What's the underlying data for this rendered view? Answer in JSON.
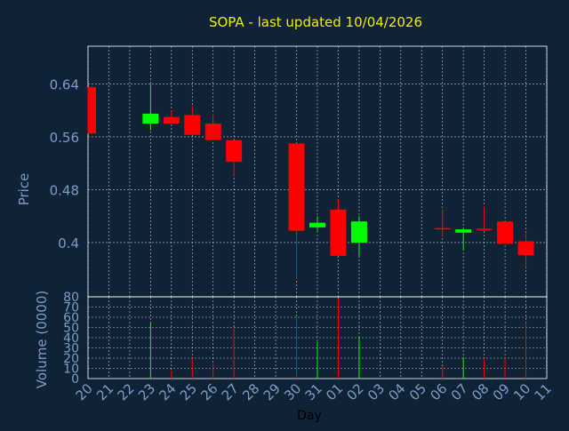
{
  "title": "SOPA - last updated 10/04/2026",
  "colors": {
    "background": "#0f2236",
    "title": "#f0f000",
    "axis_text": "#7c9ec8",
    "grid": "#ffffff",
    "up": "#00ff00",
    "down": "#ff0000"
  },
  "chart_data": [
    {
      "type": "candlestick",
      "title": "SOPA - last updated 10/04/2026",
      "ylabel": "Price",
      "ylim": [
        0.318,
        0.697
      ],
      "yticks": [
        "0.4",
        "0.48",
        "0.56",
        "0.64"
      ],
      "ytick_values": [
        0.4,
        0.48,
        0.56,
        0.64
      ],
      "grid": true,
      "candles": [
        {
          "x": "20",
          "open": 0.635,
          "high": 0.635,
          "low": 0.565,
          "close": 0.565
        },
        {
          "x": "23",
          "open": 0.58,
          "high": 0.64,
          "low": 0.57,
          "close": 0.595
        },
        {
          "x": "24",
          "open": 0.59,
          "high": 0.6,
          "low": 0.58,
          "close": 0.58
        },
        {
          "x": "25",
          "open": 0.593,
          "high": 0.607,
          "low": 0.563,
          "close": 0.563
        },
        {
          "x": "26",
          "open": 0.58,
          "high": 0.595,
          "low": 0.555,
          "close": 0.555
        },
        {
          "x": "27",
          "open": 0.555,
          "high": 0.555,
          "low": 0.5,
          "close": 0.522
        },
        {
          "x": "30",
          "open": 0.55,
          "high": 0.55,
          "low": 0.345,
          "close": 0.418
        },
        {
          "x": "31",
          "open": 0.423,
          "high": 0.44,
          "low": 0.418,
          "close": 0.43
        },
        {
          "x": "01",
          "open": 0.45,
          "high": 0.465,
          "low": 0.38,
          "close": 0.38
        },
        {
          "x": "02",
          "open": 0.4,
          "high": 0.44,
          "low": 0.38,
          "close": 0.432
        },
        {
          "x": "06",
          "open": 0.422,
          "high": 0.45,
          "low": 0.41,
          "close": 0.42
        },
        {
          "x": "07",
          "open": 0.415,
          "high": 0.422,
          "low": 0.388,
          "close": 0.42
        },
        {
          "x": "08",
          "open": 0.421,
          "high": 0.455,
          "low": 0.418,
          "close": 0.42
        },
        {
          "x": "09",
          "open": 0.432,
          "high": 0.432,
          "low": 0.398,
          "close": 0.398
        },
        {
          "x": "10",
          "open": 0.402,
          "high": 0.416,
          "low": 0.362,
          "close": 0.381
        }
      ]
    },
    {
      "type": "bar",
      "ylabel": "Volume (0000)",
      "xlabel": "Day",
      "ylim": [
        0,
        80
      ],
      "yticks": [
        "0",
        "10",
        "20",
        "30",
        "40",
        "50",
        "60",
        "70",
        "80"
      ],
      "ytick_values": [
        0,
        10,
        20,
        30,
        40,
        50,
        60,
        70,
        80
      ],
      "categories": [
        "20",
        "21",
        "22",
        "23",
        "24",
        "25",
        "26",
        "27",
        "28",
        "29",
        "30",
        "31",
        "01",
        "02",
        "03",
        "04",
        "05",
        "06",
        "07",
        "08",
        "09",
        "10",
        "11"
      ],
      "volumes": [
        {
          "x": "23",
          "value": 55,
          "color": "up"
        },
        {
          "x": "24",
          "value": 8,
          "color": "down"
        },
        {
          "x": "25",
          "value": 20,
          "color": "down"
        },
        {
          "x": "26",
          "value": 15,
          "color": "down"
        },
        {
          "x": "27",
          "value": 50,
          "color": "down"
        },
        {
          "x": "30",
          "value": 60,
          "color": "down"
        },
        {
          "x": "31",
          "value": 36,
          "color": "up"
        },
        {
          "x": "01",
          "value": 78,
          "color": "down"
        },
        {
          "x": "02",
          "value": 40,
          "color": "up"
        },
        {
          "x": "06",
          "value": 12,
          "color": "down"
        },
        {
          "x": "07",
          "value": 20,
          "color": "up"
        },
        {
          "x": "08",
          "value": 20,
          "color": "down"
        },
        {
          "x": "09",
          "value": 20,
          "color": "down"
        },
        {
          "x": "10",
          "value": 55,
          "color": "down"
        }
      ]
    }
  ]
}
